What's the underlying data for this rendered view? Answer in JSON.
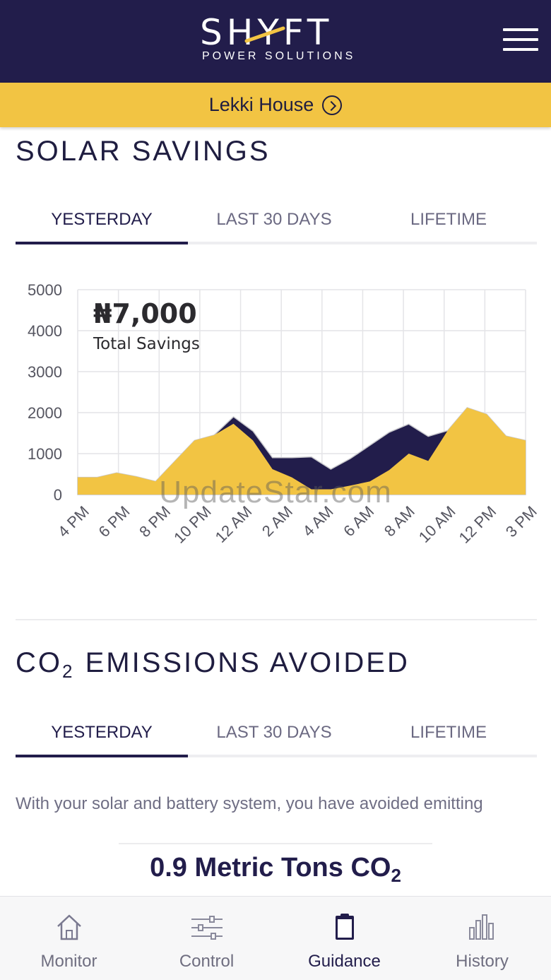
{
  "header": {
    "logo_word": "SHYFT",
    "logo_subtitle": "POWER SOLUTIONS"
  },
  "site": {
    "name": "Lekki House"
  },
  "solar": {
    "title": "SOLAR SAVINGS",
    "tabs": [
      "YESTERDAY",
      "LAST 30 DAYS",
      "LIFETIME"
    ],
    "active_tab": 0,
    "total_amount": "₦7,000",
    "total_label": "Total Savings"
  },
  "chart_data": {
    "type": "area",
    "y_ticks": [
      "5000",
      "4000",
      "3000",
      "2000",
      "1000",
      "0"
    ],
    "ylim": [
      0,
      5000
    ],
    "x_tick_labels": [
      "4 PM",
      "6 PM",
      "8 PM",
      "10 PM",
      "12 AM",
      "2 AM",
      "4 AM",
      "6 AM",
      "8 AM",
      "10 AM",
      "12 PM",
      "3 PM"
    ],
    "grid": true,
    "series": [
      {
        "color": "#221d4b",
        "values": [
          420,
          420,
          530,
          440,
          320,
          820,
          1320,
          1450,
          1900,
          1550,
          900,
          900,
          920,
          620,
          880,
          1200,
          1520,
          1720,
          1420,
          1560,
          2120,
          1960,
          1430,
          1320
        ]
      },
      {
        "color": "#f2c443",
        "values": [
          420,
          420,
          530,
          440,
          320,
          820,
          1320,
          1450,
          1730,
          1320,
          620,
          420,
          130,
          130,
          220,
          320,
          600,
          1000,
          820,
          1560,
          2120,
          1960,
          1430,
          1320
        ]
      }
    ]
  },
  "co2": {
    "title_main": "CO",
    "title_sub": "2",
    "title_rest": " EMISSIONS AVOIDED",
    "tabs": [
      "YESTERDAY",
      "LAST 30 DAYS",
      "LIFETIME"
    ],
    "active_tab": 0,
    "description": "With your solar and battery system, you have avoided emitting",
    "value_main": "0.9 Metric Tons CO",
    "value_sub": "2"
  },
  "watermark": "UpdateStar.com",
  "nav": [
    {
      "label": "Monitor",
      "icon": "house-icon"
    },
    {
      "label": "Control",
      "icon": "sliders-icon"
    },
    {
      "label": "Guidance",
      "icon": "clipboard-icon"
    },
    {
      "label": "History",
      "icon": "bar-chart-icon"
    }
  ],
  "nav_active": 2
}
